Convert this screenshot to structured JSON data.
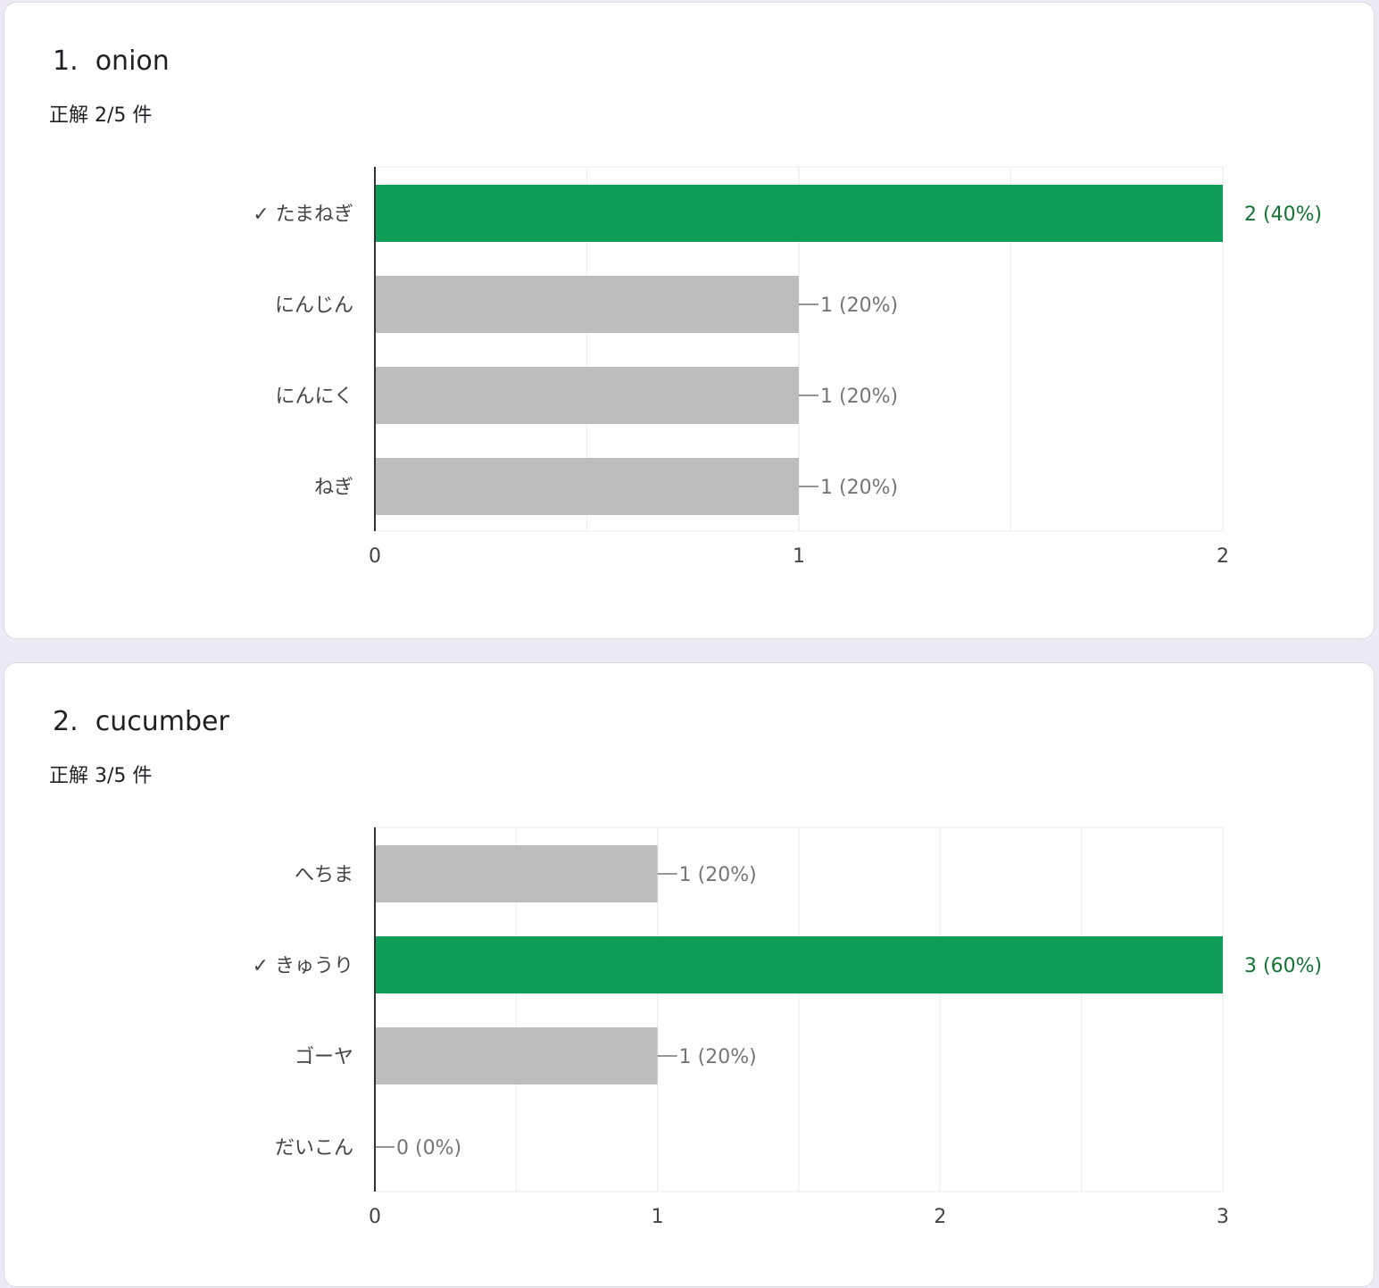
{
  "questions": [
    {
      "number": "1.",
      "title": "onion",
      "score": "正解 2/5 件",
      "chart_data": {
        "type": "bar",
        "orientation": "horizontal",
        "categories": [
          "✓ たまねぎ",
          "にんじん",
          "にんにく",
          "ねぎ"
        ],
        "values": [
          2,
          1,
          1,
          1
        ],
        "labels": [
          "2 (40%)",
          "1 (20%)",
          "1 (20%)",
          "1 (20%)"
        ],
        "correct": [
          true,
          false,
          false,
          false
        ],
        "xlim": [
          0,
          2
        ],
        "ticks": [
          0,
          1,
          2
        ],
        "minor_ticks": [
          0.5,
          1.5
        ],
        "grid": true
      }
    },
    {
      "number": "2.",
      "title": "cucumber",
      "score": "正解 3/5 件",
      "chart_data": {
        "type": "bar",
        "orientation": "horizontal",
        "categories": [
          "へちま",
          "✓ きゅうり",
          "ゴーヤ",
          "だいこん"
        ],
        "values": [
          1,
          3,
          1,
          0
        ],
        "labels": [
          "1 (20%)",
          "3 (60%)",
          "1 (20%)",
          "0 (0%)"
        ],
        "correct": [
          false,
          true,
          false,
          false
        ],
        "xlim": [
          0,
          3
        ],
        "ticks": [
          0,
          1,
          2,
          3
        ],
        "minor_ticks": [
          0.5,
          1.5,
          2.5
        ],
        "grid": true
      }
    }
  ],
  "colors": {
    "correct_bar": "#0f9d58",
    "correct_label": "#137333",
    "other_bar": "#bdbdbd",
    "other_label": "#757575",
    "grid": "#eeeeee",
    "axis": "#333333"
  }
}
